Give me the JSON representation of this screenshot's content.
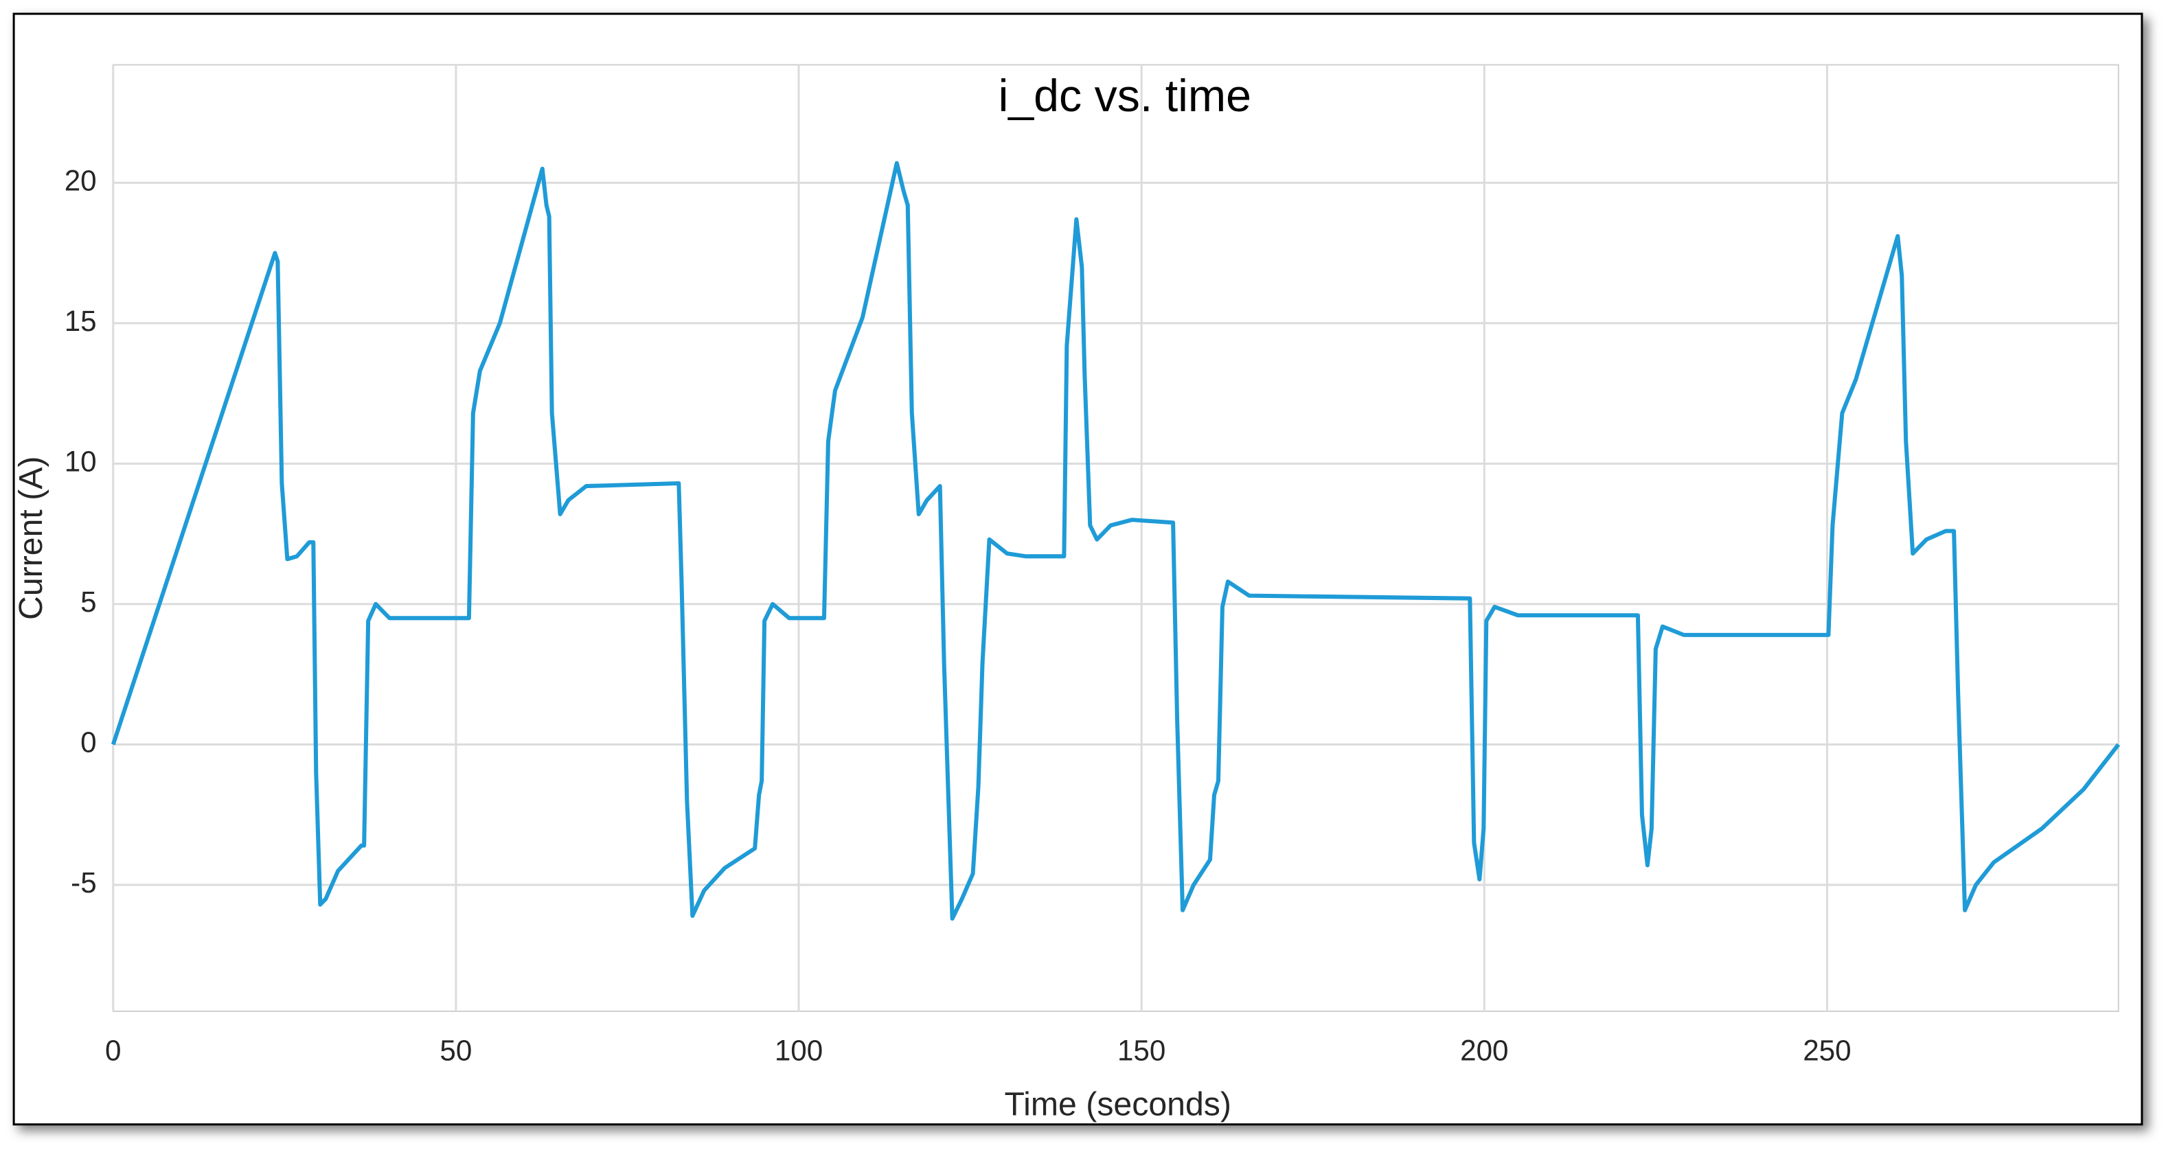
{
  "chart_data": {
    "type": "line",
    "title": "i_dc vs. time",
    "x_label": "Time (seconds)",
    "y_label": "Current (A)",
    "x": [
      0,
      23.6,
      24.0,
      24.6,
      25.4,
      26.8,
      28.6,
      29.2,
      29.6,
      30.2,
      31.0,
      32.8,
      36.2,
      36.6,
      37.2,
      38.3,
      40.3,
      51.9,
      52.5,
      53.5,
      56.4,
      62.6,
      63.2,
      63.6,
      64.0,
      65.2,
      66.4,
      69.0,
      82.5,
      82.9,
      83.7,
      84.5,
      86.2,
      89.2,
      93.6,
      94.2,
      94.6,
      95.0,
      96.2,
      98.6,
      103.7,
      104.3,
      105.3,
      109.3,
      114.3,
      115.3,
      115.9,
      116.5,
      117.5,
      118.7,
      120.6,
      121.2,
      122.4,
      123.8,
      125.4,
      126.2,
      126.8,
      127.8,
      130.4,
      133.1,
      138.7,
      139.1,
      140.5,
      141.3,
      141.7,
      142.5,
      143.5,
      145.5,
      148.6,
      154.6,
      155.2,
      156.0,
      157.6,
      160.0,
      160.6,
      161.2,
      161.8,
      162.6,
      165.7,
      197.9,
      198.5,
      199.3,
      199.9,
      200.3,
      201.5,
      204.9,
      222.4,
      223.0,
      223.8,
      224.4,
      225.0,
      226.0,
      229.1,
      250.2,
      250.8,
      252.2,
      254.2,
      260.3,
      260.9,
      261.5,
      262.5,
      264.5,
      267.3,
      268.5,
      269.1,
      270.1,
      271.7,
      274.3,
      281.3,
      287.4,
      292.5
    ],
    "values": [
      0,
      17.5,
      17.2,
      9.3,
      6.6,
      6.7,
      7.2,
      7.2,
      -1.0,
      -5.7,
      -5.5,
      -4.5,
      -3.6,
      -3.6,
      4.4,
      5.0,
      4.5,
      4.5,
      11.8,
      13.3,
      15.0,
      20.5,
      19.2,
      18.8,
      11.8,
      8.2,
      8.7,
      9.2,
      9.3,
      5.9,
      -2.0,
      -6.1,
      -5.2,
      -4.4,
      -3.7,
      -1.8,
      -1.3,
      4.4,
      5.0,
      4.5,
      4.5,
      10.8,
      12.6,
      15.2,
      20.7,
      19.7,
      19.2,
      11.8,
      8.2,
      8.7,
      9.2,
      2.9,
      -6.2,
      -5.5,
      -4.6,
      -1.5,
      2.9,
      7.3,
      6.8,
      6.7,
      6.7,
      14.2,
      18.7,
      17.0,
      13.2,
      7.8,
      7.3,
      7.8,
      8.0,
      7.9,
      0.9,
      -5.9,
      -5.0,
      -4.1,
      -1.8,
      -1.3,
      4.9,
      5.8,
      5.3,
      5.2,
      -3.5,
      -4.8,
      -3.0,
      4.4,
      4.9,
      4.6,
      4.6,
      -2.5,
      -4.3,
      -3.0,
      3.4,
      4.2,
      3.9,
      3.9,
      7.8,
      11.8,
      13.0,
      18.1,
      16.7,
      10.8,
      6.8,
      7.3,
      7.6,
      7.6,
      1.9,
      -5.9,
      -5.0,
      -4.2,
      -3.0,
      -1.6,
      0
    ],
    "color": "#1f9bd7",
    "xlim": [
      0,
      292.5
    ],
    "ylim": [
      -9.5,
      24.2
    ],
    "xticks": [
      0,
      50,
      100,
      150,
      200,
      250
    ],
    "yticks": [
      -5,
      0,
      5,
      10,
      15,
      20
    ],
    "grid": true
  }
}
